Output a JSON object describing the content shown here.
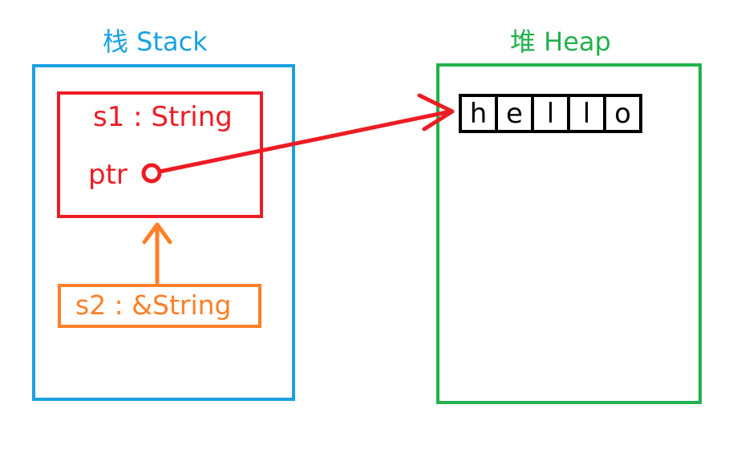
{
  "stack": {
    "title": "栈 Stack",
    "s1_label": "s1 : String",
    "ptr_label": "ptr",
    "s2_label": "s2 : &String"
  },
  "heap": {
    "title": "堆 Heap",
    "cells": [
      "h",
      "e",
      "l",
      "l",
      "o"
    ]
  },
  "colors": {
    "stack": "#1ba1e2",
    "heap": "#22b14c",
    "s1": "#ed1c24",
    "s2": "#ff7f27",
    "cells": "#000000"
  }
}
